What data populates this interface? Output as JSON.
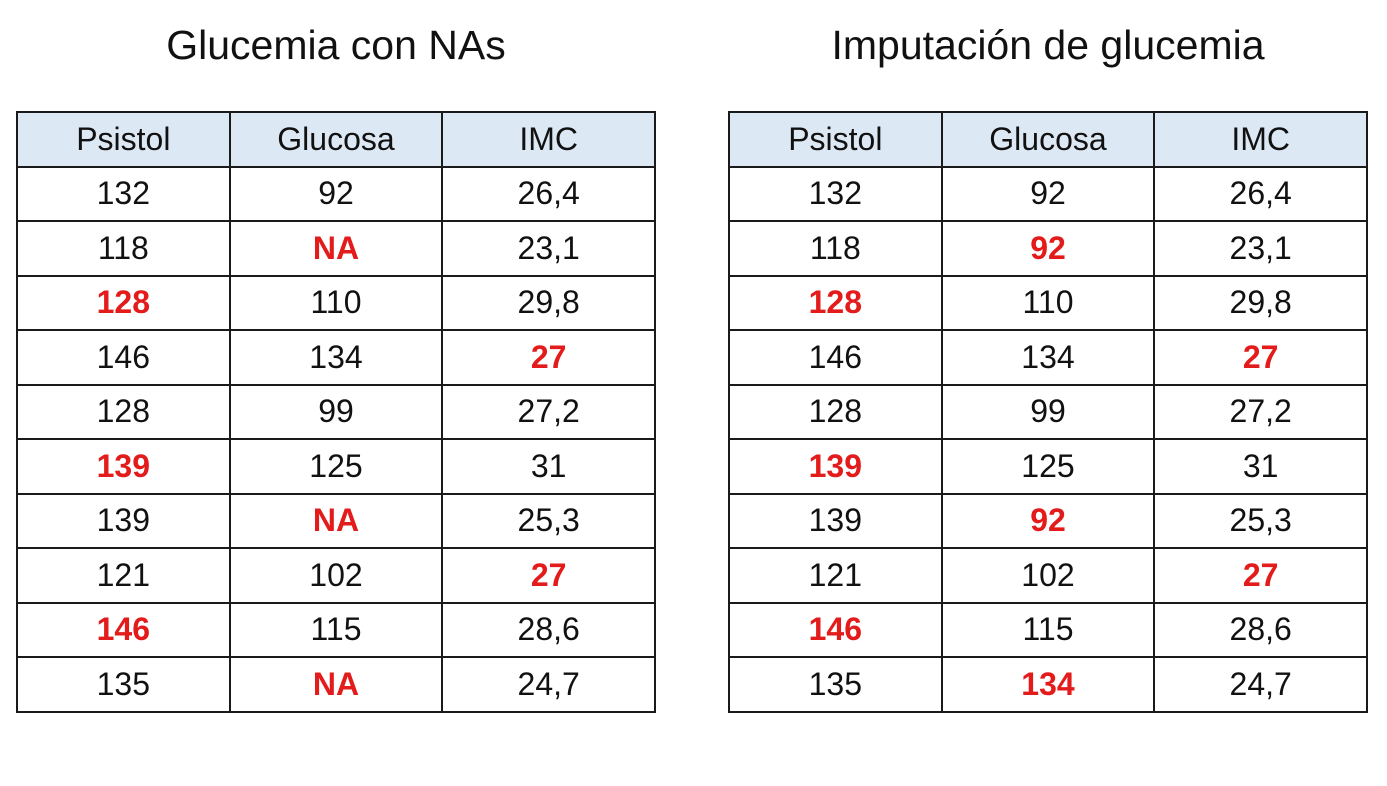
{
  "left": {
    "title": "Glucemia con NAs",
    "headers": [
      "Psistol",
      "Glucosa",
      "IMC"
    ],
    "rows": [
      [
        {
          "v": "132",
          "hl": false
        },
        {
          "v": "92",
          "hl": false
        },
        {
          "v": "26,4",
          "hl": false
        }
      ],
      [
        {
          "v": "118",
          "hl": false
        },
        {
          "v": "NA",
          "hl": true
        },
        {
          "v": "23,1",
          "hl": false
        }
      ],
      [
        {
          "v": "128",
          "hl": true
        },
        {
          "v": "110",
          "hl": false
        },
        {
          "v": "29,8",
          "hl": false
        }
      ],
      [
        {
          "v": "146",
          "hl": false
        },
        {
          "v": "134",
          "hl": false
        },
        {
          "v": "27",
          "hl": true
        }
      ],
      [
        {
          "v": "128",
          "hl": false
        },
        {
          "v": "99",
          "hl": false
        },
        {
          "v": "27,2",
          "hl": false
        }
      ],
      [
        {
          "v": "139",
          "hl": true
        },
        {
          "v": "125",
          "hl": false
        },
        {
          "v": "31",
          "hl": false
        }
      ],
      [
        {
          "v": "139",
          "hl": false
        },
        {
          "v": "NA",
          "hl": true
        },
        {
          "v": "25,3",
          "hl": false
        }
      ],
      [
        {
          "v": "121",
          "hl": false
        },
        {
          "v": "102",
          "hl": false
        },
        {
          "v": "27",
          "hl": true
        }
      ],
      [
        {
          "v": "146",
          "hl": true
        },
        {
          "v": "115",
          "hl": false
        },
        {
          "v": "28,6",
          "hl": false
        }
      ],
      [
        {
          "v": "135",
          "hl": false
        },
        {
          "v": "NA",
          "hl": true
        },
        {
          "v": "24,7",
          "hl": false
        }
      ]
    ]
  },
  "right": {
    "title": "Imputación de glucemia",
    "headers": [
      "Psistol",
      "Glucosa",
      "IMC"
    ],
    "rows": [
      [
        {
          "v": "132",
          "hl": false
        },
        {
          "v": "92",
          "hl": false
        },
        {
          "v": "26,4",
          "hl": false
        }
      ],
      [
        {
          "v": "118",
          "hl": false
        },
        {
          "v": "92",
          "hl": true
        },
        {
          "v": "23,1",
          "hl": false
        }
      ],
      [
        {
          "v": "128",
          "hl": true
        },
        {
          "v": "110",
          "hl": false
        },
        {
          "v": "29,8",
          "hl": false
        }
      ],
      [
        {
          "v": "146",
          "hl": false
        },
        {
          "v": "134",
          "hl": false
        },
        {
          "v": "27",
          "hl": true
        }
      ],
      [
        {
          "v": "128",
          "hl": false
        },
        {
          "v": "99",
          "hl": false
        },
        {
          "v": "27,2",
          "hl": false
        }
      ],
      [
        {
          "v": "139",
          "hl": true
        },
        {
          "v": "125",
          "hl": false
        },
        {
          "v": "31",
          "hl": false
        }
      ],
      [
        {
          "v": "139",
          "hl": false
        },
        {
          "v": "92",
          "hl": true
        },
        {
          "v": "25,3",
          "hl": false
        }
      ],
      [
        {
          "v": "121",
          "hl": false
        },
        {
          "v": "102",
          "hl": false
        },
        {
          "v": "27",
          "hl": true
        }
      ],
      [
        {
          "v": "146",
          "hl": true
        },
        {
          "v": "115",
          "hl": false
        },
        {
          "v": "28,6",
          "hl": false
        }
      ],
      [
        {
          "v": "135",
          "hl": false
        },
        {
          "v": "134",
          "hl": true
        },
        {
          "v": "24,7",
          "hl": false
        }
      ]
    ]
  },
  "colors": {
    "highlight": "#e31b1b",
    "header_bg": "#dde8f5",
    "border": "#1a1a1a"
  }
}
